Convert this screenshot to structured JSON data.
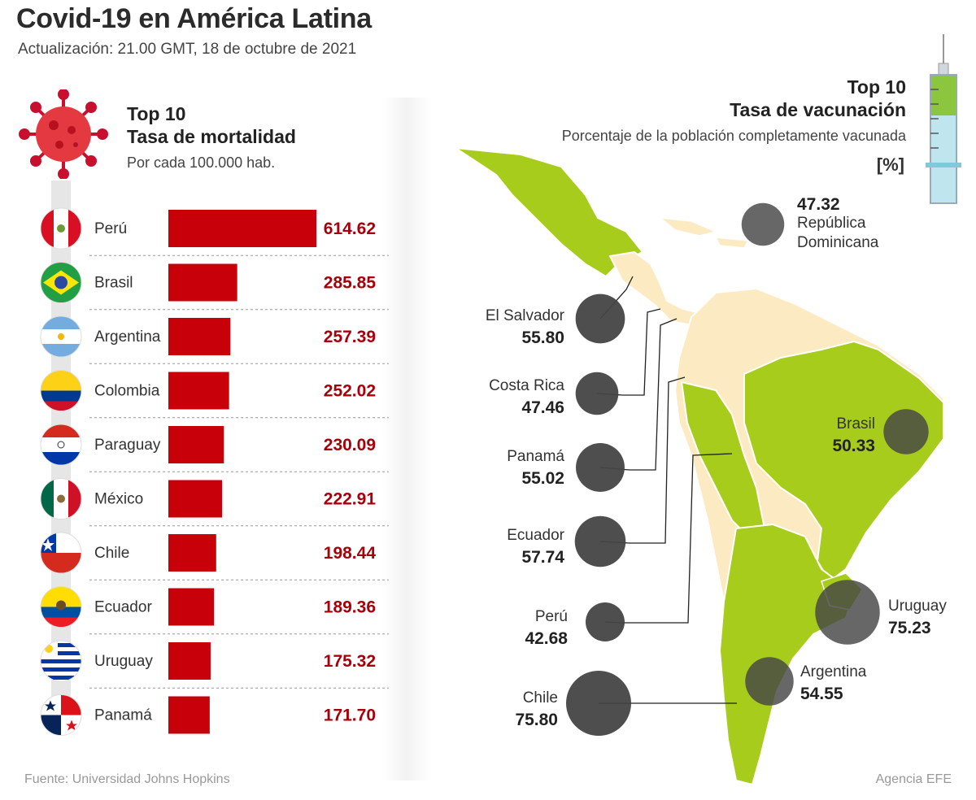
{
  "title": "Covid-19 en América Latina",
  "update": "Actualización: 21.00 GMT, 18 de octubre de 2021",
  "colors": {
    "bar": "#c8000a",
    "value_text": "#a8000a",
    "map_green": "#a8cc1c",
    "map_land": "#fcebc2",
    "bubble": "#454545"
  },
  "mortality": {
    "top": "Top 10",
    "title": "Tasa de mortalidad",
    "subtitle": "Por cada 100.000 hab."
  },
  "vaccination": {
    "top": "Top 10",
    "title": "Tasa de vacunación",
    "subtitle": "Porcentaje de la población completamente vacunada",
    "unit": "[%]"
  },
  "chart_data": [
    {
      "type": "bar",
      "orientation": "horizontal",
      "title": "Tasa de mortalidad",
      "subtitle": "Por cada 100.000 hab.",
      "categories": [
        "Perú",
        "Brasil",
        "Argentina",
        "Colombia",
        "Paraguay",
        "México",
        "Chile",
        "Ecuador",
        "Uruguay",
        "Panamá"
      ],
      "values": [
        614.62,
        285.85,
        257.39,
        252.02,
        230.09,
        222.91,
        198.44,
        189.36,
        175.32,
        171.7
      ],
      "labels": [
        "614.62",
        "285.85",
        "257.39",
        "252.02",
        "230.09",
        "222.91",
        "198.44",
        "189.36",
        "175.32",
        "171.70"
      ],
      "flags": [
        "flag-peru",
        "flag-brasil",
        "flag-argentina",
        "flag-colombia",
        "flag-paraguay",
        "flag-mexico",
        "flag-chile",
        "flag-ecuador",
        "flag-uruguay",
        "flag-panama"
      ],
      "xlim": [
        0,
        614.62
      ]
    },
    {
      "type": "scatter",
      "subtype": "bubble-map",
      "title": "Tasa de vacunación",
      "subtitle": "Porcentaje de la población completamente vacunada",
      "unit": "[%]",
      "points": [
        {
          "country": "República Dominicana",
          "value": 47.32,
          "label": "47.32"
        },
        {
          "country": "El Salvador",
          "value": 55.8,
          "label": "55.80"
        },
        {
          "country": "Costa Rica",
          "value": 47.46,
          "label": "47.46"
        },
        {
          "country": "Brasil",
          "value": 50.33,
          "label": "50.33"
        },
        {
          "country": "Panamá",
          "value": 55.02,
          "label": "55.02"
        },
        {
          "country": "Ecuador",
          "value": 57.74,
          "label": "57.74"
        },
        {
          "country": "Uruguay",
          "value": 75.23,
          "label": "75.23"
        },
        {
          "country": "Perú",
          "value": 42.68,
          "label": "42.68"
        },
        {
          "country": "Argentina",
          "value": 54.55,
          "label": "54.55"
        },
        {
          "country": "Chile",
          "value": 75.8,
          "label": "75.80"
        }
      ]
    }
  ],
  "footer": {
    "source": "Fuente: Universidad Johns Hopkins",
    "credit": "Agencia EFE"
  }
}
